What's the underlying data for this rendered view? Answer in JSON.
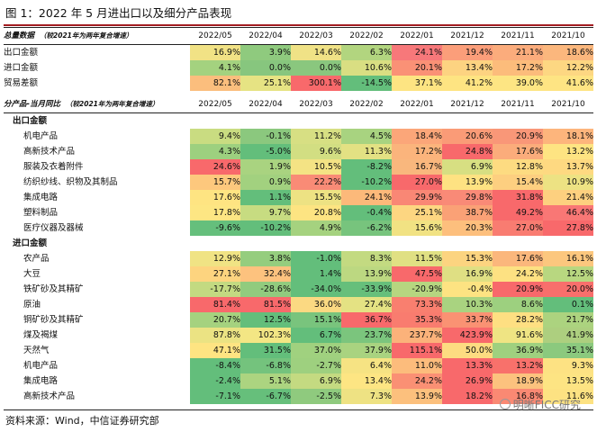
{
  "figure": {
    "title": "图 1：2022 年 5 月进出口以及细分产品表现",
    "source": "资料来源：Wind，中信证券研究部",
    "watermark": "明晰FICC研究"
  },
  "columns": [
    "2022/05",
    "2022/04",
    "2022/03",
    "2022/02",
    "2022/01",
    "2021/12",
    "2021/11",
    "2021/10"
  ],
  "sections": [
    {
      "header": {
        "label": "总量数据",
        "note": "（较2021年为两年复合增速）"
      },
      "groups": [
        {
          "title": "",
          "rows": [
            {
              "label": "出口金额",
              "values": [
                "16.9%",
                "3.9%",
                "14.6%",
                "6.3%",
                "24.1%",
                "19.4%",
                "21.1%",
                "18.6%"
              ],
              "colors": [
                "#f1e285",
                "#8fca7e",
                "#f0e286",
                "#b2d57f",
                "#f7787a",
                "#fb9e7a",
                "#fbac7c",
                "#fbb77d"
              ]
            },
            {
              "label": "进口金额",
              "values": [
                "4.1%",
                "0.0%",
                "0.0%",
                "10.6%",
                "20.1%",
                "13.4%",
                "17.2%",
                "12.2%"
              ],
              "colors": [
                "#a4d27f",
                "#87c67e",
                "#8ac77e",
                "#d9de82",
                "#fa9176",
                "#fdd381",
                "#fcbc7b",
                "#fdd782"
              ]
            },
            {
              "label": "贸易差额",
              "values": [
                "82.1%",
                "25.1%",
                "300.1%",
                "-14.5%",
                "37.1%",
                "41.2%",
                "39.0%",
                "41.6%"
              ],
              "colors": [
                "#fbbe7d",
                "#e6e383",
                "#f8696b",
                "#63be7b",
                "#fde482",
                "#fee482",
                "#fde583",
                "#fee483"
              ]
            }
          ]
        }
      ]
    },
    {
      "header": {
        "label": "分产品-当月同比",
        "note": "（较2021年为两年复合增速）"
      },
      "groups": [
        {
          "title": "出口金额",
          "rows": [
            {
              "label": "机电产品",
              "values": [
                "9.4%",
                "-0.1%",
                "11.2%",
                "4.5%",
                "18.4%",
                "20.6%",
                "20.9%",
                "18.1%"
              ],
              "colors": [
                "#c9dc81",
                "#8bc87e",
                "#d7df83",
                "#a8d380",
                "#fba679",
                "#fa9b77",
                "#f99778",
                "#fdb57c"
              ]
            },
            {
              "label": "高新技术产品",
              "values": [
                "4.3%",
                "-5.0%",
                "9.6%",
                "11.3%",
                "17.2%",
                "24.8%",
                "17.6%",
                "13.2%"
              ],
              "colors": [
                "#9dd07f",
                "#63be7b",
                "#d2de82",
                "#e3e183",
                "#fbb47c",
                "#f8696b",
                "#fbac7b",
                "#fee482"
              ]
            },
            {
              "label": "服装及衣着附件",
              "values": [
                "24.6%",
                "1.9%",
                "10.5%",
                "-8.2%",
                "16.7%",
                "6.9%",
                "12.8%",
                "13.7%"
              ],
              "colors": [
                "#f8696b",
                "#a9d380",
                "#f4e384",
                "#63be7b",
                "#f9b77d",
                "#d7df82",
                "#fddb81",
                "#fed981"
              ]
            },
            {
              "label": "纺织纱线、织物及其制品",
              "values": [
                "15.7%",
                "0.9%",
                "22.2%",
                "-10.2%",
                "27.0%",
                "13.9%",
                "15.4%",
                "10.9%"
              ],
              "colors": [
                "#fdc87d",
                "#a2d17f",
                "#f98b76",
                "#63be7b",
                "#f8696b",
                "#fee282",
                "#fdcf80",
                "#ede283"
              ]
            },
            {
              "label": "集成电路",
              "values": [
                "17.6%",
                "1.1%",
                "15.5%",
                "24.1%",
                "29.9%",
                "29.8%",
                "31.8%",
                "21.4%"
              ],
              "colors": [
                "#fee482",
                "#63be7b",
                "#ede283",
                "#fcb97a",
                "#f98775",
                "#f98a77",
                "#f8696b",
                "#fdd07f"
              ]
            },
            {
              "label": "塑料制品",
              "values": [
                "17.8%",
                "9.7%",
                "20.8%",
                "-0.4%",
                "25.1%",
                "38.7%",
                "49.2%",
                "46.4%"
              ],
              "colors": [
                "#fde683",
                "#c7dc81",
                "#fde482",
                "#63be7b",
                "#fdd681",
                "#faa176",
                "#f8696b",
                "#f97775"
              ]
            },
            {
              "label": "医疗仪器及器械",
              "values": [
                "-9.6%",
                "-10.2%",
                "4.9%",
                "-6.2%",
                "15.6%",
                "20.3%",
                "27.0%",
                "27.8%"
              ],
              "colors": [
                "#65bf7c",
                "#63be7b",
                "#a5d27f",
                "#77c47d",
                "#f1e283",
                "#fdbf7d",
                "#f97c71",
                "#f8696b"
              ]
            }
          ]
        },
        {
          "title": "进口金额",
          "rows": [
            {
              "label": "农产品",
              "values": [
                "12.9%",
                "3.8%",
                "-1.0%",
                "8.3%",
                "11.5%",
                "15.3%",
                "17.6%",
                "16.1%"
              ],
              "colors": [
                "#f0e384",
                "#95cd7e",
                "#63be7b",
                "#c3da81",
                "#e0e083",
                "#fcd480",
                "#fbb77c",
                "#fcc77e"
              ]
            },
            {
              "label": "大豆",
              "values": [
                "27.1%",
                "32.4%",
                "1.4%",
                "13.9%",
                "47.5%",
                "16.9%",
                "24.2%",
                "12.5%"
              ],
              "colors": [
                "#fdd47f",
                "#fdc27e",
                "#63be7b",
                "#bcd881",
                "#f8696b",
                "#dfdf83",
                "#fde182",
                "#b8d780"
              ]
            },
            {
              "label": "铁矿砂及其精矿",
              "values": [
                "-17.7%",
                "-28.6%",
                "-34.0%",
                "-33.9%",
                "-20.9%",
                "-0.4%",
                "20.9%",
                "20.0%"
              ],
              "colors": [
                "#c3da81",
                "#91cb7e",
                "#63be7b",
                "#66bf7b",
                "#b6d680",
                "#fde382",
                "#f8696b",
                "#f86f6c"
              ]
            },
            {
              "label": "原油",
              "values": [
                "81.4%",
                "81.5%",
                "36.0%",
                "27.4%",
                "73.3%",
                "10.3%",
                "8.6%",
                "0.1%"
              ],
              "colors": [
                "#f8696b",
                "#f8696b",
                "#fbd982",
                "#e4e283",
                "#f97f6f",
                "#a9d380",
                "#9dd07f",
                "#63be7b"
              ]
            },
            {
              "label": "铜矿砂及其精矿",
              "values": [
                "20.7%",
                "12.5%",
                "15.1%",
                "36.7%",
                "35.3%",
                "33.7%",
                "28.2%",
                "21.7%"
              ],
              "colors": [
                "#a5d27f",
                "#63be7b",
                "#79c47d",
                "#f8696b",
                "#f97c6f",
                "#fa9273",
                "#fedf82",
                "#acd37f"
              ]
            },
            {
              "label": "煤及褐煤",
              "values": [
                "87.8%",
                "102.3%",
                "6.7%",
                "23.7%",
                "237.7%",
                "423.9%",
                "91.6%",
                "41.9%"
              ],
              "colors": [
                "#ebe383",
                "#f3e684",
                "#63be7b",
                "#7bc57d",
                "#fbb27a",
                "#f8696b",
                "#efe483",
                "#adcf7f"
              ]
            },
            {
              "label": "天然气",
              "values": [
                "47.1%",
                "31.5%",
                "37.0%",
                "37.9%",
                "115.1%",
                "50.0%",
                "36.9%",
                "35.1%"
              ],
              "colors": [
                "#fee482",
                "#63be7b",
                "#a0d17f",
                "#a9d380",
                "#f8696b",
                "#fddc81",
                "#9fd07f",
                "#8bc97e"
              ]
            },
            {
              "label": "机电产品",
              "values": [
                "-8.4%",
                "-6.8%",
                "-2.7%",
                "6.4%",
                "11.0%",
                "13.3%",
                "13.2%",
                "9.3%"
              ],
              "colors": [
                "#63be7b",
                "#74c37d",
                "#9ed07f",
                "#f6e383",
                "#fcbc7c",
                "#f8696b",
                "#f8716b",
                "#fde283"
              ]
            },
            {
              "label": "集成电路",
              "values": [
                "-2.4%",
                "5.1%",
                "6.9%",
                "13.4%",
                "24.2%",
                "26.9%",
                "18.9%",
                "13.5%"
              ],
              "colors": [
                "#63be7b",
                "#acd480",
                "#c4da81",
                "#fde583",
                "#fa9074",
                "#f8696b",
                "#fcc27e",
                "#fde483"
              ]
            },
            {
              "label": "高新技术产品",
              "values": [
                "-7.1%",
                "-6.7%",
                "-2.5%",
                "7.3%",
                "13.9%",
                "18.2%",
                "16.8%",
                "11.6%"
              ],
              "colors": [
                "#63be7b",
                "#66bf7b",
                "#8fca7e",
                "#eee283",
                "#fcc07d",
                "#f8696b",
                "#fa8973",
                "#fde282"
              ]
            }
          ]
        }
      ]
    }
  ]
}
